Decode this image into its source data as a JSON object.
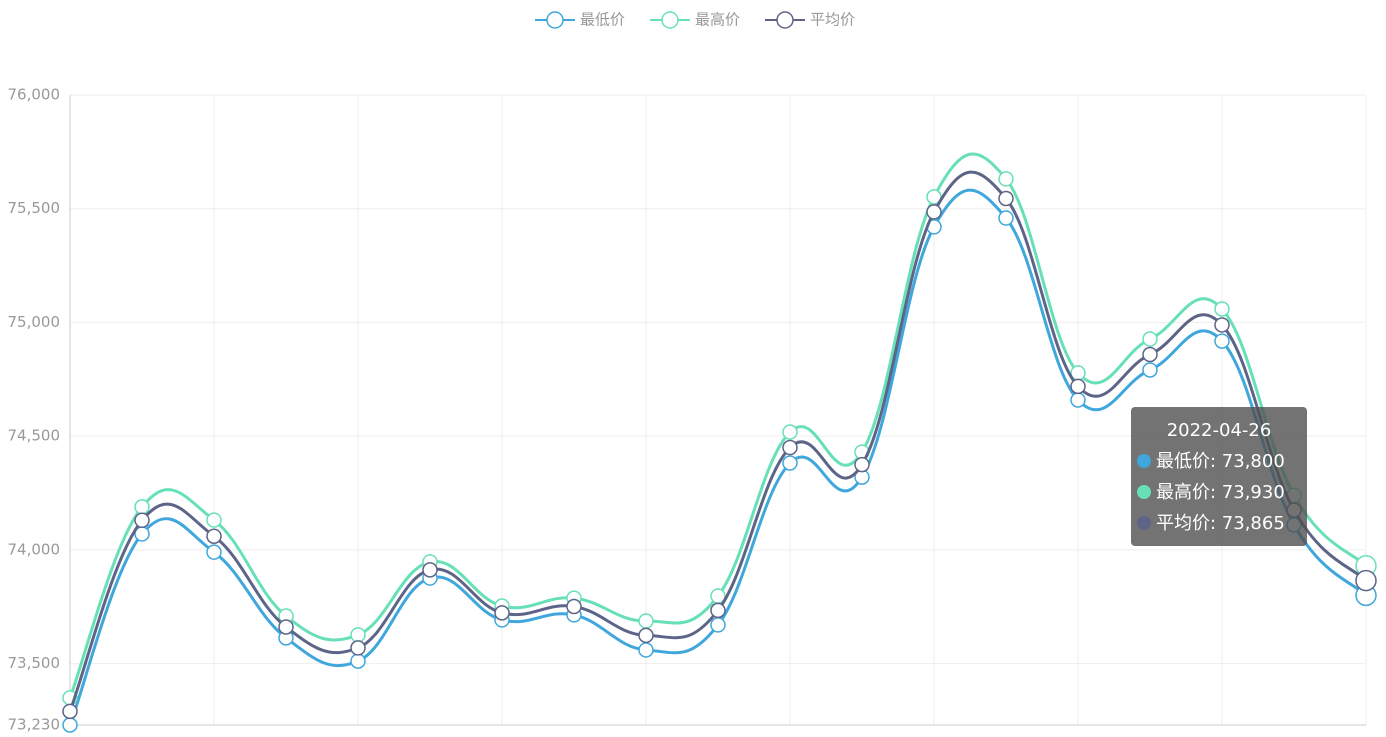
{
  "chart_data": {
    "type": "line",
    "categories": [
      null,
      null,
      null,
      null,
      null,
      null,
      null,
      null,
      null,
      null,
      null,
      null,
      null,
      null,
      null,
      null,
      null,
      null,
      "2022-04-26"
    ],
    "series": [
      {
        "name": "最低价",
        "color": "#3fa7dc",
        "values": [
          73230,
          74070,
          73990,
          73613,
          73511,
          73876,
          73692,
          73714,
          73560,
          73670,
          74382,
          74320,
          75420,
          75459,
          74659,
          74791,
          74918,
          74110,
          73800
        ]
      },
      {
        "name": "最高价",
        "color": "#67e0b8",
        "values": [
          73349,
          74189,
          74131,
          73709,
          73626,
          73947,
          73753,
          73788,
          73687,
          73797,
          74518,
          74430,
          75552,
          75631,
          74778,
          74927,
          75059,
          74240,
          73930
        ]
      },
      {
        "name": "平均价",
        "color": "#5d6488",
        "values": [
          73290,
          74130,
          74060,
          73661,
          73569,
          73912,
          73723,
          73751,
          73624,
          73734,
          74450,
          74375,
          75486,
          75545,
          74719,
          74859,
          74989,
          74175,
          73865
        ]
      }
    ],
    "ylim": [
      73230,
      76000
    ],
    "yticks": [
      {
        "value": 73230,
        "label": "73,230"
      },
      {
        "value": 73500,
        "label": "73,500"
      },
      {
        "value": 74000,
        "label": "74,000"
      },
      {
        "value": 74500,
        "label": "74,500"
      },
      {
        "value": 75000,
        "label": "75,000"
      },
      {
        "value": 75500,
        "label": "75,500"
      },
      {
        "value": 76000,
        "label": "76,000"
      }
    ],
    "grid": true,
    "tooltip": {
      "value_labels": [
        "73,800",
        "73,930",
        "73,865"
      ]
    }
  }
}
